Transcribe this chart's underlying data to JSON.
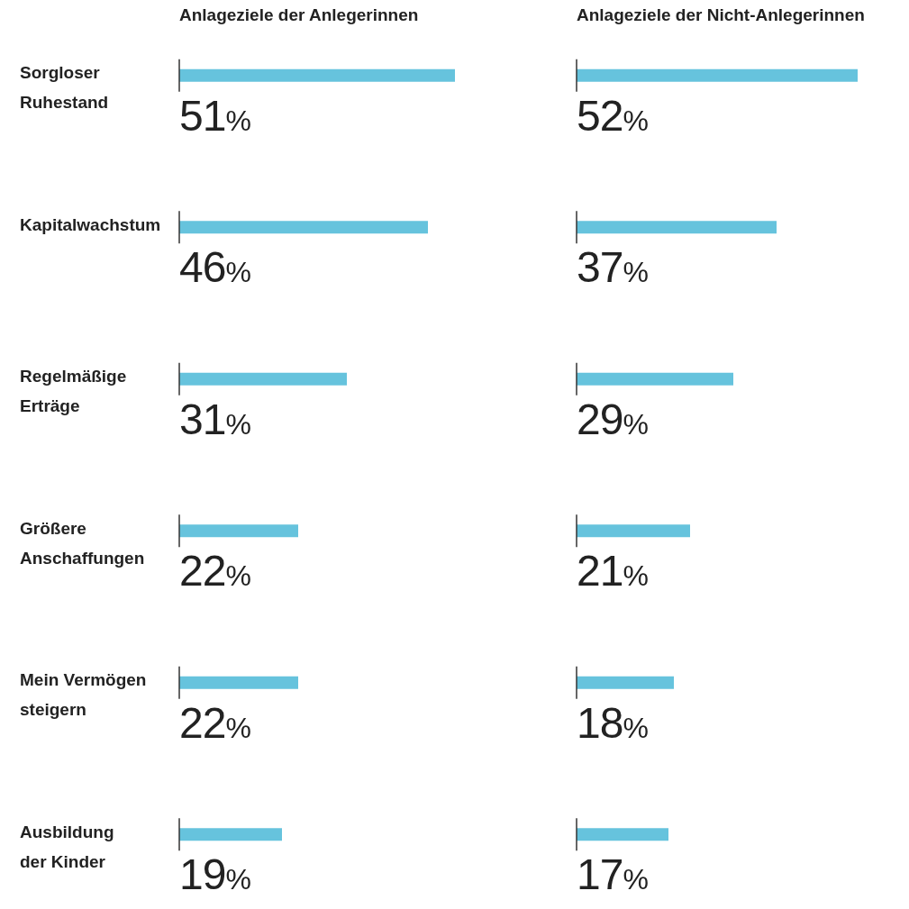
{
  "chart_data": [
    {
      "type": "bar",
      "orientation": "horizontal",
      "title": "Anlageziele der Anlegerinnen",
      "categories": [
        "Sorgloser Ruhestand",
        "Kapitalwachstum",
        "Regelmäßige Erträge",
        "Größere Anschaffungen",
        "Mein Vermögen steigern",
        "Ausbildung der Kinder"
      ],
      "values": [
        51,
        46,
        31,
        22,
        22,
        19
      ],
      "color": "#66c3dd",
      "value_labels": [
        "51%",
        "46%",
        "31%",
        "22%",
        "22%",
        "19%"
      ],
      "tick_labels": "y"
    },
    {
      "type": "bar",
      "orientation": "horizontal",
      "title": "Anlageziele der Nicht-Anlegerinnen",
      "categories": [
        null,
        null,
        null,
        null,
        null,
        null
      ],
      "values": [
        52,
        37,
        29,
        21,
        18,
        17
      ],
      "color": "#66c3dd",
      "value_labels": [
        "52%",
        "37%",
        "29%",
        "21%",
        "18%",
        "17%"
      ],
      "tick_labels": false
    }
  ]
}
